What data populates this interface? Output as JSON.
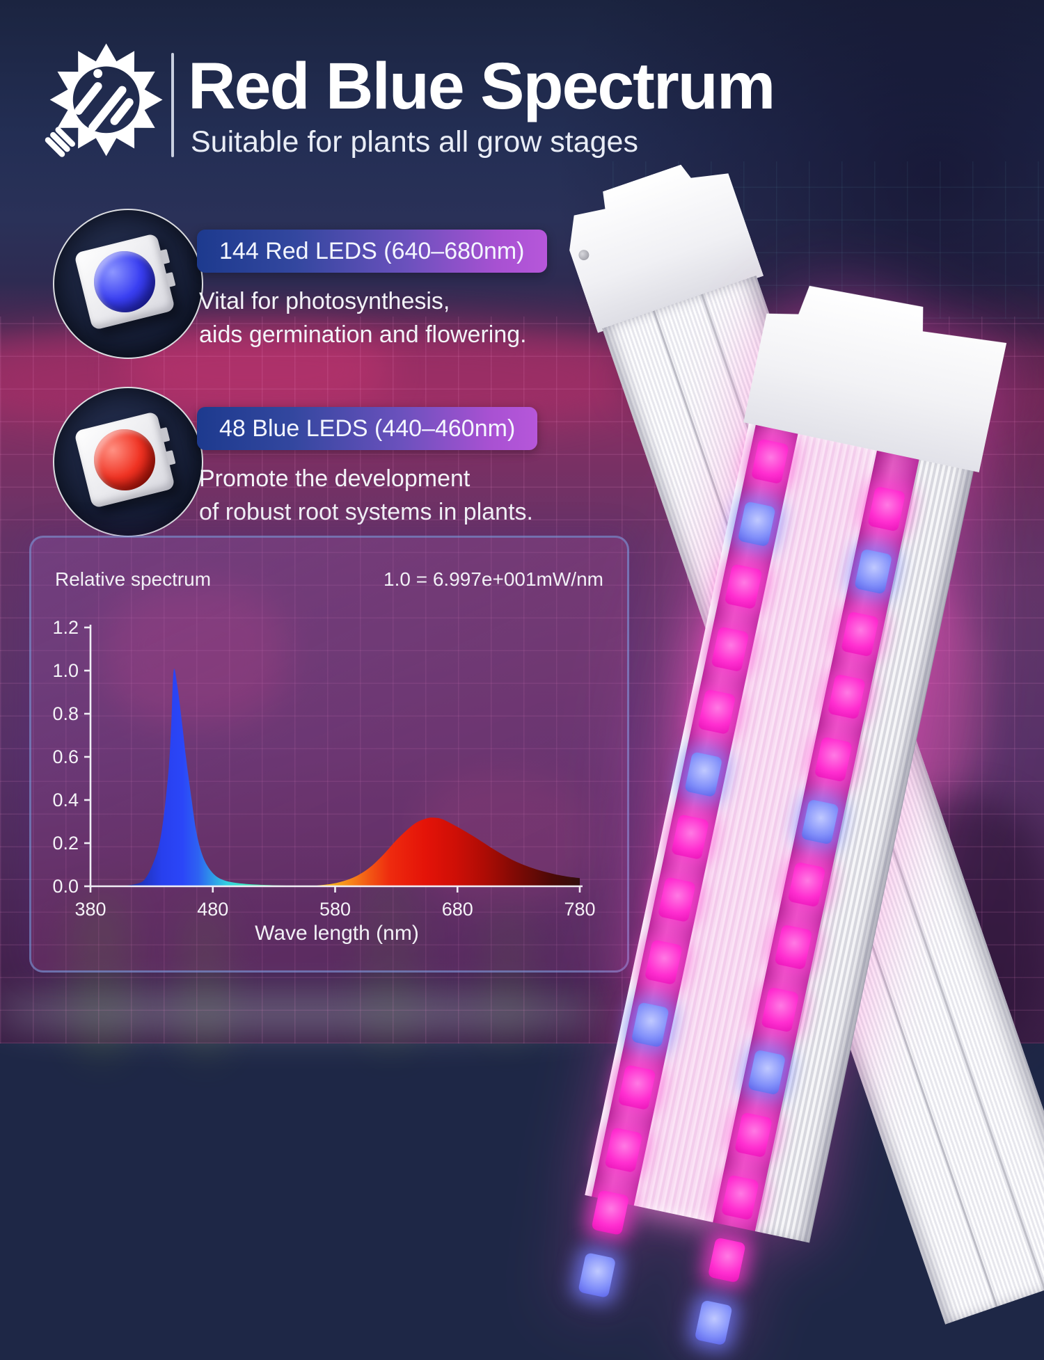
{
  "header": {
    "logo_icon": "sun-grow-light-icon",
    "title": "Red Blue Spectrum",
    "subtitle": "Suitable for plants all grow stages"
  },
  "callouts": [
    {
      "icon": "blue-smd-led-chip-icon",
      "badge": "144 Red LEDS (640–680nm)",
      "desc_line1": "Vital for photosynthesis,",
      "desc_line2": "aids germination and flowering."
    },
    {
      "icon": "red-smd-led-chip-icon",
      "badge": "48 Blue LEDS (440–460nm)",
      "desc_line1": "Promote the development",
      "desc_line2": "of robust root systems in plants."
    }
  ],
  "chart_data": {
    "type": "area",
    "title": "Relative spectrum",
    "annotation": "1.0 = 6.997e+001mW/nm",
    "xlabel": "Wave length  (nm)",
    "xlim": [
      380,
      780
    ],
    "ylim": [
      0,
      1.2
    ],
    "x_ticks": [
      380,
      480,
      580,
      680,
      780
    ],
    "y_ticks": [
      "0.0",
      "0.2",
      "0.4",
      "0.6",
      "0.8",
      "1.0",
      "1.2"
    ],
    "grid": false,
    "legend": "none",
    "series": [
      {
        "name": "blue LED emission (440-460nm)",
        "peak_nm": 448,
        "peak_value": 1.0,
        "points": [
          [
            380,
            0
          ],
          [
            402,
            0.002
          ],
          [
            410,
            0.004
          ],
          [
            418,
            0.012
          ],
          [
            424,
            0.03
          ],
          [
            430,
            0.09
          ],
          [
            436,
            0.19
          ],
          [
            440,
            0.33
          ],
          [
            444,
            0.55
          ],
          [
            446,
            0.75
          ],
          [
            448,
            1.0
          ],
          [
            451,
            0.93
          ],
          [
            455,
            0.75
          ],
          [
            458,
            0.6
          ],
          [
            462,
            0.43
          ],
          [
            466,
            0.27
          ],
          [
            470,
            0.17
          ],
          [
            475,
            0.1
          ],
          [
            482,
            0.05
          ],
          [
            490,
            0.026
          ],
          [
            500,
            0.015
          ],
          [
            515,
            0.008
          ],
          [
            535,
            0.004
          ],
          [
            555,
            0.002
          ],
          [
            570,
            0
          ]
        ]
      },
      {
        "name": "red LED emission (640-680nm)",
        "peak_nm": 658,
        "peak_value": 0.32,
        "points": [
          [
            558,
            0
          ],
          [
            566,
            0.004
          ],
          [
            578,
            0.012
          ],
          [
            590,
            0.03
          ],
          [
            600,
            0.055
          ],
          [
            610,
            0.095
          ],
          [
            620,
            0.15
          ],
          [
            632,
            0.225
          ],
          [
            645,
            0.29
          ],
          [
            655,
            0.315
          ],
          [
            661,
            0.318
          ],
          [
            668,
            0.31
          ],
          [
            680,
            0.275
          ],
          [
            695,
            0.225
          ],
          [
            710,
            0.17
          ],
          [
            725,
            0.122
          ],
          [
            742,
            0.083
          ],
          [
            758,
            0.058
          ],
          [
            770,
            0.045
          ],
          [
            780,
            0.038
          ]
        ]
      }
    ]
  },
  "colors": {
    "badge_gradient_left": "#1d3a8e",
    "badge_gradient_right": "#b657da",
    "background_top_navy": "#1e2746",
    "background_magenta_band": "#8e3065",
    "led_pink": "#ff2ed0",
    "led_blue": "#8290fa",
    "axis_white": "#f0eef5"
  },
  "product": {
    "front_leds": {
      "count_per_column": 14,
      "spacing": 92,
      "start_a": 26,
      "start_b": 58,
      "blue_positions": [
        1,
        5,
        9,
        13
      ]
    }
  }
}
